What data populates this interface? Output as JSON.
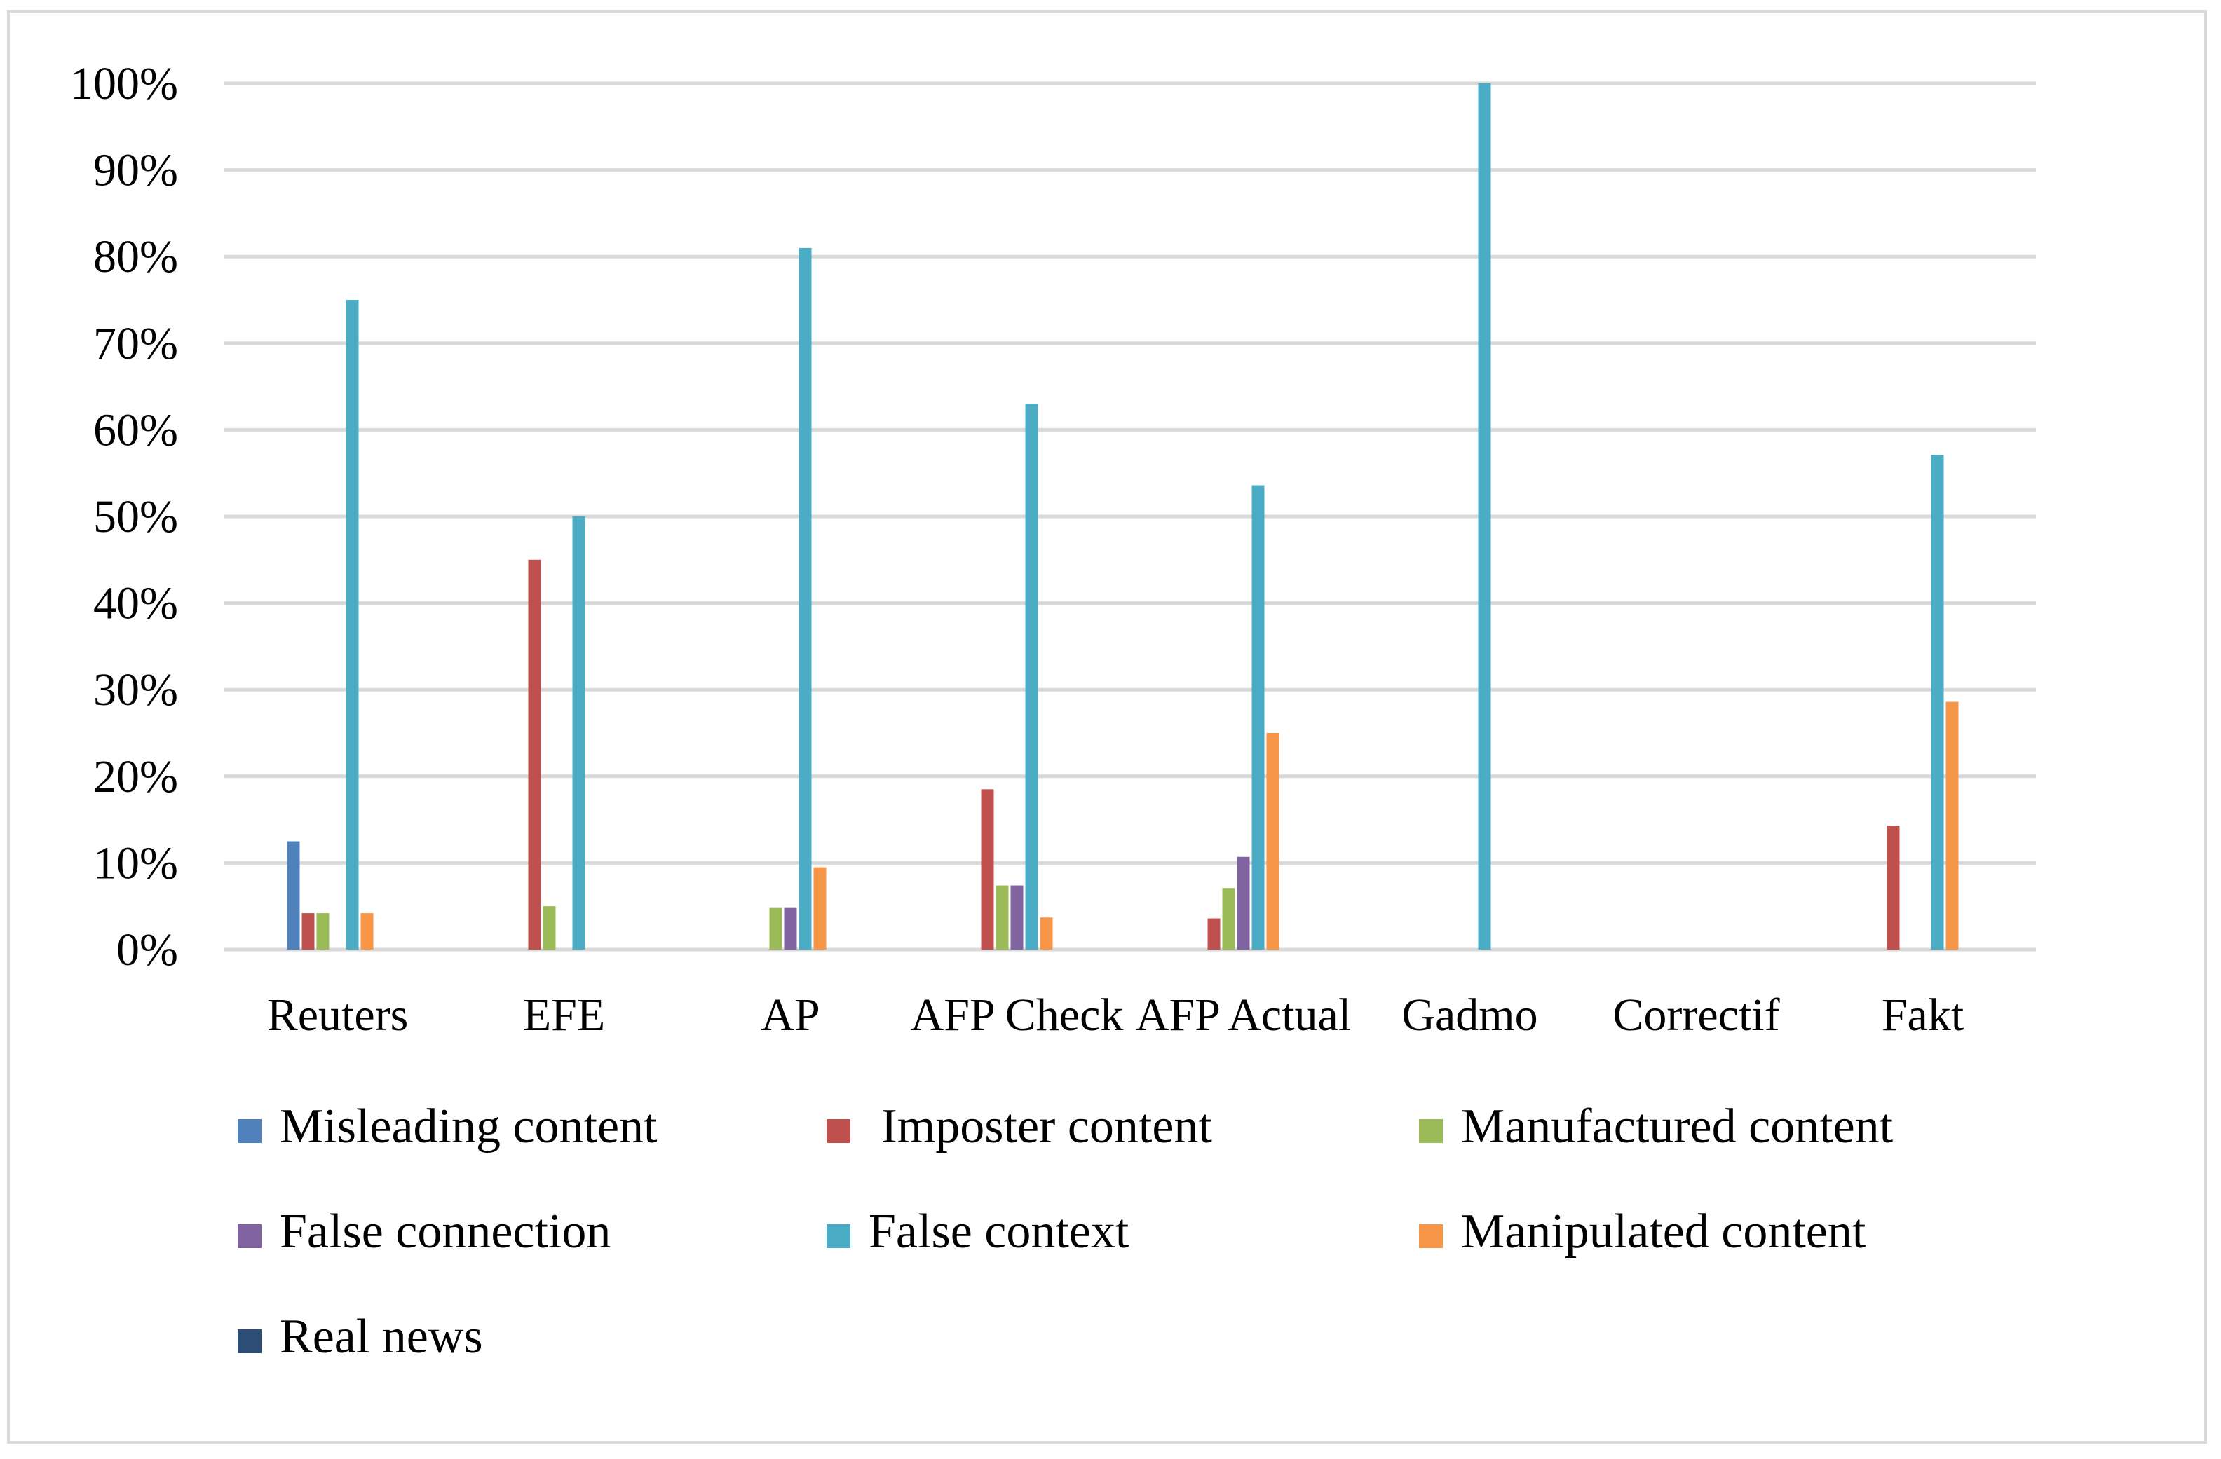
{
  "chart_data": {
    "type": "bar",
    "title": "",
    "xlabel": "",
    "ylabel": "",
    "ylim": [
      0,
      100
    ],
    "y_ticks": [
      "0%",
      "10%",
      "20%",
      "30%",
      "40%",
      "50%",
      "60%",
      "70%",
      "80%",
      "90%",
      "100%"
    ],
    "y_tick_values": [
      0,
      10,
      20,
      30,
      40,
      50,
      60,
      70,
      80,
      90,
      100
    ],
    "categories": [
      "Reuters",
      "EFE",
      "AP",
      "AFP Check",
      "AFP Actual",
      "Gadmo",
      "Correctif",
      "Fakt"
    ],
    "series": [
      {
        "name": "Misleading content",
        "color": "#4f81bd",
        "values": [
          12.5,
          0,
          0,
          0,
          0,
          0,
          0,
          0
        ]
      },
      {
        "name": " Imposter content",
        "color": "#c0504d",
        "values": [
          4.2,
          45,
          0,
          18.5,
          3.6,
          0,
          0,
          14.3
        ]
      },
      {
        "name": "Manufactured content",
        "color": "#9bbb59",
        "values": [
          4.2,
          5,
          4.8,
          7.4,
          7.1,
          0,
          0,
          0
        ]
      },
      {
        "name": "False connection",
        "color": "#8064a2",
        "values": [
          0,
          0,
          4.8,
          7.4,
          10.7,
          0,
          0,
          0
        ]
      },
      {
        "name": "False context",
        "color": "#4bacc6",
        "values": [
          75,
          50,
          81,
          63,
          53.6,
          100,
          0,
          57.1
        ]
      },
      {
        "name": "Manipulated content",
        "color": "#f79646",
        "values": [
          4.2,
          0,
          9.5,
          3.7,
          25,
          0,
          0,
          28.6
        ]
      },
      {
        "name": "Real news",
        "color": "#2c4d75",
        "values": [
          0,
          0,
          0,
          0,
          0,
          0,
          0,
          0
        ]
      }
    ],
    "grid": true,
    "legend_position": "bottom",
    "gridline_color": "#d9d9d9"
  }
}
